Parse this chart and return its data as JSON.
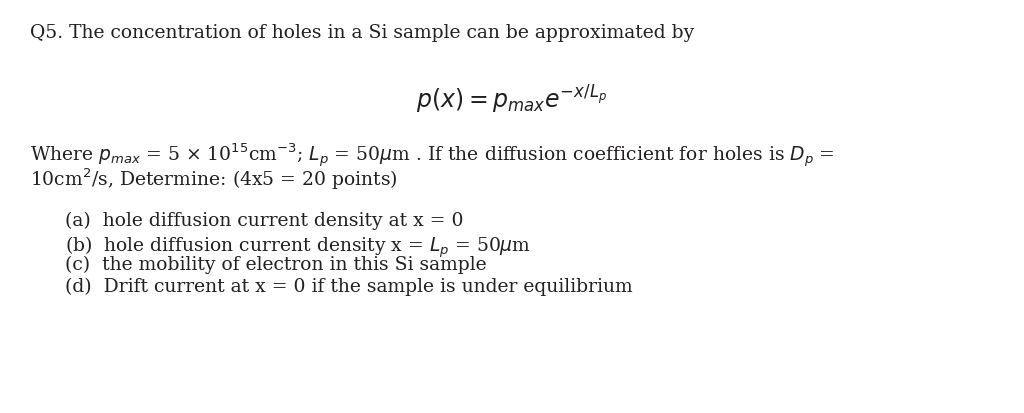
{
  "background_color": "#ffffff",
  "figsize": [
    10.24,
    4.14
  ],
  "dpi": 100,
  "title_line": "Q5. The concentration of holes in a Si sample can be approximated by",
  "formula": "$p(x) = p_{max}e^{-x/L_p}$",
  "where_line1": "Where $p_{max}$ = 5 × 10$^{15}$cm$^{-3}$; $L_p$ = 50$\\mu$m . If the diffusion coefficient for holes is $D_p$ =",
  "where_line2": "10cm$^{2}$/s, Determine: (4x5 = 20 points)",
  "item_a": "(a)  hole diffusion current density at x = 0",
  "item_b": "(b)  hole diffusion current density x = $L_p$ = 50$\\mu$m",
  "item_c": "(c)  the mobility of electron in this Si sample",
  "item_d": "(d)  Drift current at x = 0 if the sample is under equilibrium",
  "font_size_main": 13.5,
  "font_size_formula": 17,
  "text_color": "#231f20",
  "font_family": "DejaVu Serif"
}
